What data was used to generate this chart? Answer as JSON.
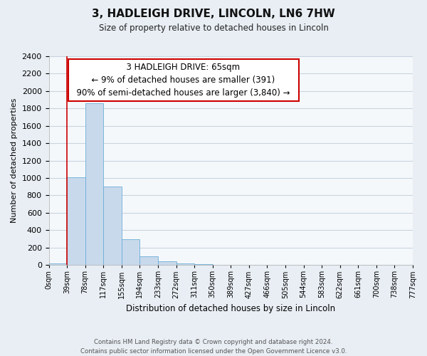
{
  "title": "3, HADLEIGH DRIVE, LINCOLN, LN6 7HW",
  "subtitle": "Size of property relative to detached houses in Lincoln",
  "xlabel": "Distribution of detached houses by size in Lincoln",
  "ylabel": "Number of detached properties",
  "bar_values": [
    20,
    1005,
    1860,
    905,
    300,
    100,
    45,
    20,
    10,
    0,
    0,
    0,
    0,
    0,
    0,
    0,
    0,
    0,
    0,
    0
  ],
  "bin_labels": [
    "0sqm",
    "39sqm",
    "78sqm",
    "117sqm",
    "155sqm",
    "194sqm",
    "233sqm",
    "272sqm",
    "311sqm",
    "350sqm",
    "389sqm",
    "427sqm",
    "466sqm",
    "505sqm",
    "544sqm",
    "583sqm",
    "622sqm",
    "661sqm",
    "700sqm",
    "738sqm",
    "777sqm"
  ],
  "bar_color": "#c8d9ec",
  "bar_edge_color": "#6baed6",
  "red_line_x": 1,
  "ylim": [
    0,
    2400
  ],
  "yticks": [
    0,
    200,
    400,
    600,
    800,
    1000,
    1200,
    1400,
    1600,
    1800,
    2000,
    2200,
    2400
  ],
  "annotation_title": "3 HADLEIGH DRIVE: 65sqm",
  "annotation_line1": "← 9% of detached houses are smaller (391)",
  "annotation_line2": "90% of semi-detached houses are larger (3,840) →",
  "annotation_box_color": "#ffffff",
  "annotation_box_edge": "#cc0000",
  "red_line_color": "#cc0000",
  "footer_line1": "Contains HM Land Registry data © Crown copyright and database right 2024.",
  "footer_line2": "Contains public sector information licensed under the Open Government Licence v3.0.",
  "background_color": "#e8eef4",
  "plot_bg_color": "#f5f8fb",
  "grid_color": "#c8d4e0"
}
